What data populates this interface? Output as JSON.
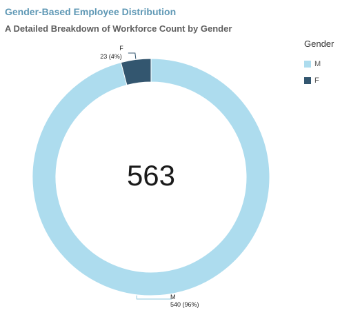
{
  "chart_data": {
    "type": "pie",
    "donut": true,
    "title": "Gender-Based Employee Distribution",
    "subtitle": "A Detailed Breakdown of Workforce Count by Gender",
    "center_label": "563",
    "legend": {
      "title": "Gender",
      "placement": "right"
    },
    "slices": [
      {
        "label": "M",
        "value": 540,
        "percent_label": "540 (96%)",
        "color": "#addcee"
      },
      {
        "label": "F",
        "value": 23,
        "percent_label": "23 (4%)",
        "color": "#33566f"
      }
    ]
  }
}
